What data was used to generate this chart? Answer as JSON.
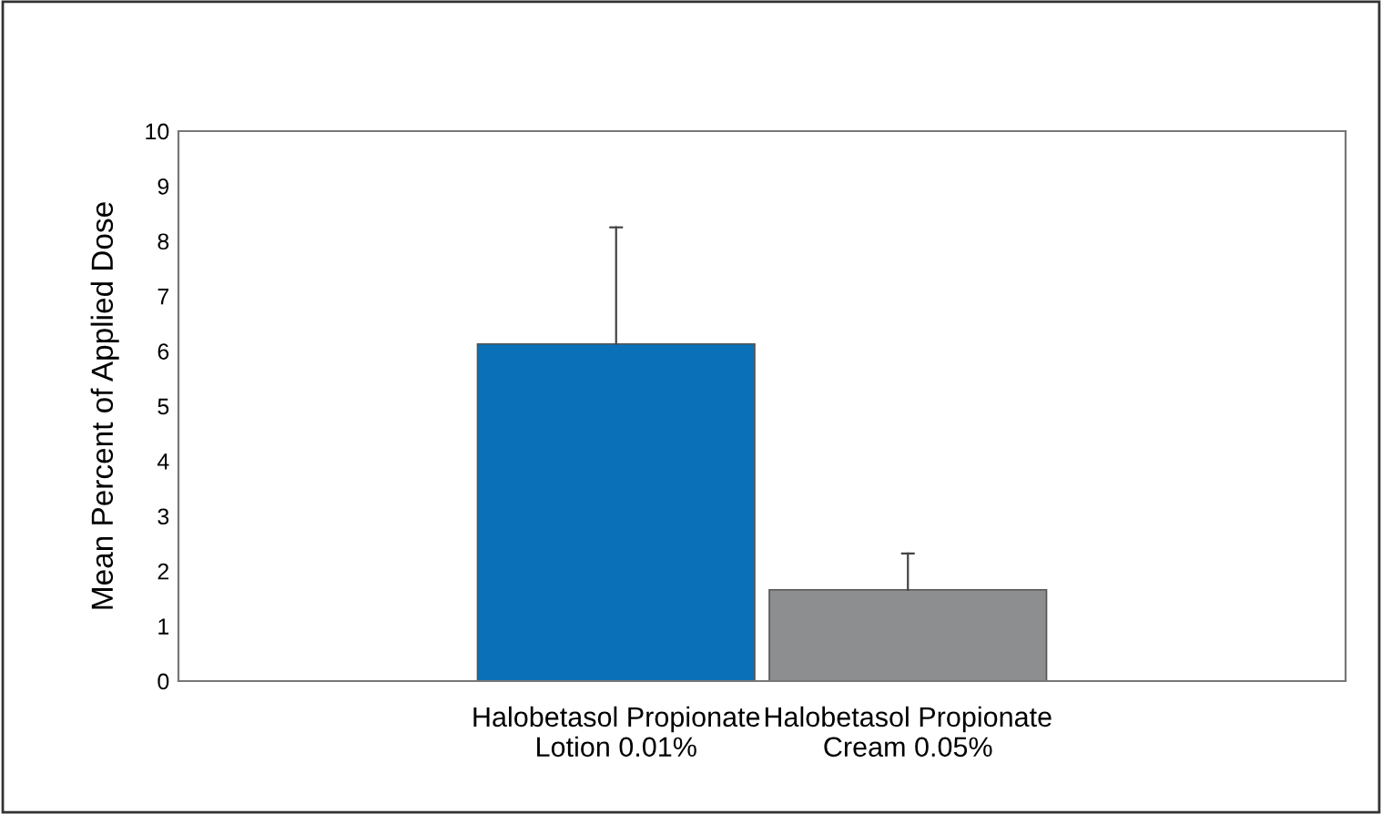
{
  "chart_data": {
    "type": "bar",
    "ylabel": "Mean Percent of Applied Dose",
    "categories": [
      "Halobetasol Propionate\nLotion 0.01%",
      "Halobetasol Propionate\nCream 0.05%"
    ],
    "values": [
      6.13,
      1.66
    ],
    "colors": [
      "#0a70b8",
      "#8c8e90"
    ],
    "errors": [
      [
        6.13,
        8.25
      ],
      [
        1.66,
        2.32
      ]
    ],
    "ylim": [
      0,
      10
    ],
    "yticks": [
      0,
      1,
      2,
      3,
      4,
      5,
      6,
      7,
      8,
      9,
      10
    ],
    "grid": false
  }
}
